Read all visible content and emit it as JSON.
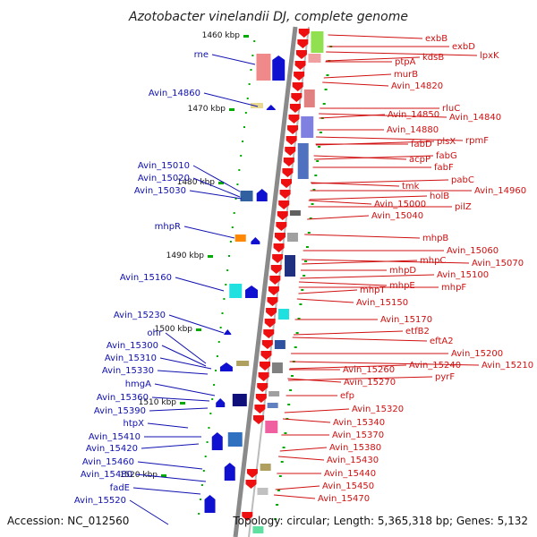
{
  "title": "Azotobacter vinelandii DJ, complete genome",
  "footer": {
    "accession": "Accession: NC_012560",
    "topology": "Topology: circular; Length: 5,365,318 bp; Genes: 5,132"
  },
  "colors": {
    "left_labels": "#1010b0",
    "right_labels": "#d01010",
    "backbone": "#808080",
    "tick": "#00aa00"
  },
  "kbp_labels": [
    "1460 kbp",
    "1470 kbp",
    "1480 kbp",
    "1490 kbp",
    "1500 kbp",
    "1510 kbp",
    "1520 kbp"
  ],
  "left_genes": [
    "rne",
    "Avin_14860",
    "Avin_15010",
    "Avin_15020",
    "Avin_15030",
    "mhpR",
    "Avin_15160",
    "Avin_15230",
    "ohr",
    "Avin_15300",
    "Avin_15310",
    "Avin_15330",
    "hmgA",
    "Avin_15360",
    "Avin_15390",
    "htpX",
    "Avin_15410",
    "Avin_15420",
    "Avin_15460",
    "Avin_15480",
    "fadE",
    "Avin_15520"
  ],
  "right_genes": [
    "exbB",
    "exbD",
    "kdsB",
    "lpxK",
    "ptpA",
    "murB",
    "Avin_14820",
    "rluC",
    "Avin_14850",
    "Avin_14840",
    "Avin_14880",
    "plsX",
    "rpmF",
    "fabD",
    "fabG",
    "acpP",
    "fabF",
    "pabC",
    "tmk",
    "Avin_14960",
    "holB",
    "Avin_15000",
    "pilZ",
    "Avin_15040",
    "mhpB",
    "Avin_15060",
    "mhpC",
    "Avin_15070",
    "mhpD",
    "Avin_15100",
    "mhpE",
    "mhpF",
    "mhpT",
    "Avin_15150",
    "Avin_15170",
    "etfB2",
    "eftA2",
    "Avin_15200",
    "Avin_15240",
    "Avin_15210",
    "Avin_15260",
    "pyrF",
    "Avin_15270",
    "efp",
    "Avin_15320",
    "Avin_15340",
    "Avin_15370",
    "Avin_15380",
    "Avin_15430",
    "Avin_15440",
    "Avin_15450",
    "Avin_15470"
  ]
}
